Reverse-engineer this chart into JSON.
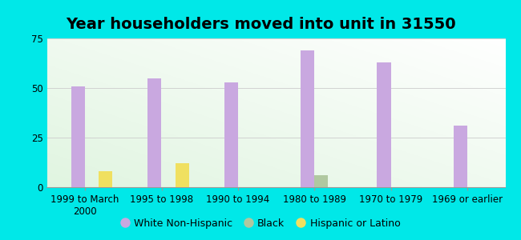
{
  "title": "Year householders moved into unit in 31550",
  "categories": [
    "1999 to March\n2000",
    "1995 to 1998",
    "1990 to 1994",
    "1980 to 1989",
    "1970 to 1979",
    "1969 or earlier"
  ],
  "white_non_hispanic": [
    51,
    55,
    53,
    69,
    63,
    31
  ],
  "black": [
    0,
    0,
    0,
    6,
    0,
    0
  ],
  "hispanic_or_latino": [
    8,
    12,
    0,
    0,
    0,
    0
  ],
  "white_color": "#c9a8e0",
  "black_color": "#b0c8a0",
  "hispanic_color": "#f0e060",
  "background_color": "#00e8e8",
  "ylim": [
    0,
    75
  ],
  "yticks": [
    0,
    25,
    50,
    75
  ],
  "bar_width": 0.18,
  "title_fontsize": 14,
  "tick_fontsize": 8.5,
  "legend_fontsize": 9
}
